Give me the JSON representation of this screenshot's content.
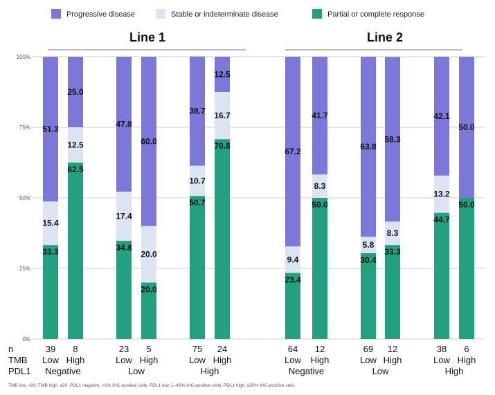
{
  "chart_data": {
    "type": "bar",
    "stacked": true,
    "legend": {
      "position": "top",
      "entries": [
        {
          "name": "Progressive disease",
          "color": "#7b78d9"
        },
        {
          "name": "Stable or indeterminate disease",
          "color": "#dce4f4"
        },
        {
          "name": "Partial or complete response",
          "color": "#22a07f"
        }
      ]
    },
    "ylim": [
      0,
      100
    ],
    "yticks": [
      "0%",
      "25%",
      "50%",
      "75%",
      "100%"
    ],
    "grid": true,
    "groups": [
      {
        "title": "Line 1",
        "bars": [
          0,
          1,
          2,
          3,
          4,
          5
        ]
      },
      {
        "title": "Line 2",
        "bars": [
          6,
          7,
          8,
          9,
          10,
          11
        ]
      }
    ],
    "row_headers": {
      "n": "n",
      "tmb": "TMB",
      "pdl1": "PDL1"
    },
    "bars": [
      {
        "n": "39",
        "tmb": "Low",
        "response": 33.3,
        "stable": 15.4,
        "progressive": 51.3,
        "response_label": "33.3",
        "stable_label": "15.4",
        "progressive_label": "51.3"
      },
      {
        "n": "8",
        "tmb": "High",
        "response": 62.5,
        "stable": 12.5,
        "progressive": 25.0,
        "response_label": "62.5",
        "stable_label": "12.5",
        "progressive_label": "25.0"
      },
      {
        "n": "23",
        "tmb": "Low",
        "response": 34.8,
        "stable": 17.4,
        "progressive": 47.8,
        "response_label": "34.8",
        "stable_label": "17.4",
        "progressive_label": "47.8"
      },
      {
        "n": "5",
        "tmb": "High",
        "response": 20.0,
        "stable": 20.0,
        "progressive": 60.0,
        "response_label": "20.0",
        "stable_label": "20.0",
        "progressive_label": "60.0"
      },
      {
        "n": "75",
        "tmb": "Low",
        "response": 50.7,
        "stable": 10.7,
        "progressive": 38.7,
        "response_label": "50.7",
        "stable_label": "10.7",
        "progressive_label": "38.7"
      },
      {
        "n": "24",
        "tmb": "High",
        "response": 70.8,
        "stable": 16.7,
        "progressive": 12.5,
        "response_label": "70.8",
        "stable_label": "16.7",
        "progressive_label": "12.5"
      },
      {
        "n": "64",
        "tmb": "Low",
        "response": 23.4,
        "stable": 9.4,
        "progressive": 67.2,
        "response_label": "23.4",
        "stable_label": "9.4",
        "progressive_label": "67.2"
      },
      {
        "n": "12",
        "tmb": "High",
        "response": 50.0,
        "stable": 8.3,
        "progressive": 41.7,
        "response_label": "50.0",
        "stable_label": "8.3",
        "progressive_label": "41.7"
      },
      {
        "n": "69",
        "tmb": "Low",
        "response": 30.4,
        "stable": 5.8,
        "progressive": 63.8,
        "response_label": "30.4",
        "stable_label": "5.8",
        "progressive_label": "63.8"
      },
      {
        "n": "12",
        "tmb": "High",
        "response": 33.3,
        "stable": 8.3,
        "progressive": 58.3,
        "response_label": "33.3",
        "stable_label": "8.3",
        "progressive_label": "58.3"
      },
      {
        "n": "38",
        "tmb": "Low",
        "response": 44.7,
        "stable": 13.2,
        "progressive": 42.1,
        "response_label": "44.7",
        "stable_label": "13.2",
        "progressive_label": "42.1"
      },
      {
        "n": "6",
        "tmb": "High",
        "response": 50.0,
        "stable": 0,
        "progressive": 50.0,
        "response_label": "50.0",
        "stable_label": "",
        "progressive_label": "50.0"
      }
    ],
    "pdl1_groups": [
      {
        "label": "Negative",
        "bars": [
          0,
          1
        ]
      },
      {
        "label": "Low",
        "bars": [
          2,
          3
        ]
      },
      {
        "label": "High",
        "bars": [
          4,
          5
        ]
      },
      {
        "label": "Negative",
        "bars": [
          6,
          7
        ]
      },
      {
        "label": "Low",
        "bars": [
          8,
          9
        ]
      },
      {
        "label": "High",
        "bars": [
          10,
          11
        ]
      }
    ],
    "footnote": "TMB low, <20; TMB high, ≥20. PDL1 negative, <1% IHC-positive cells; PDL1 low, 1–49% IHC-positive cells; PDL1 high, ≥50% IHC-positive cells"
  }
}
